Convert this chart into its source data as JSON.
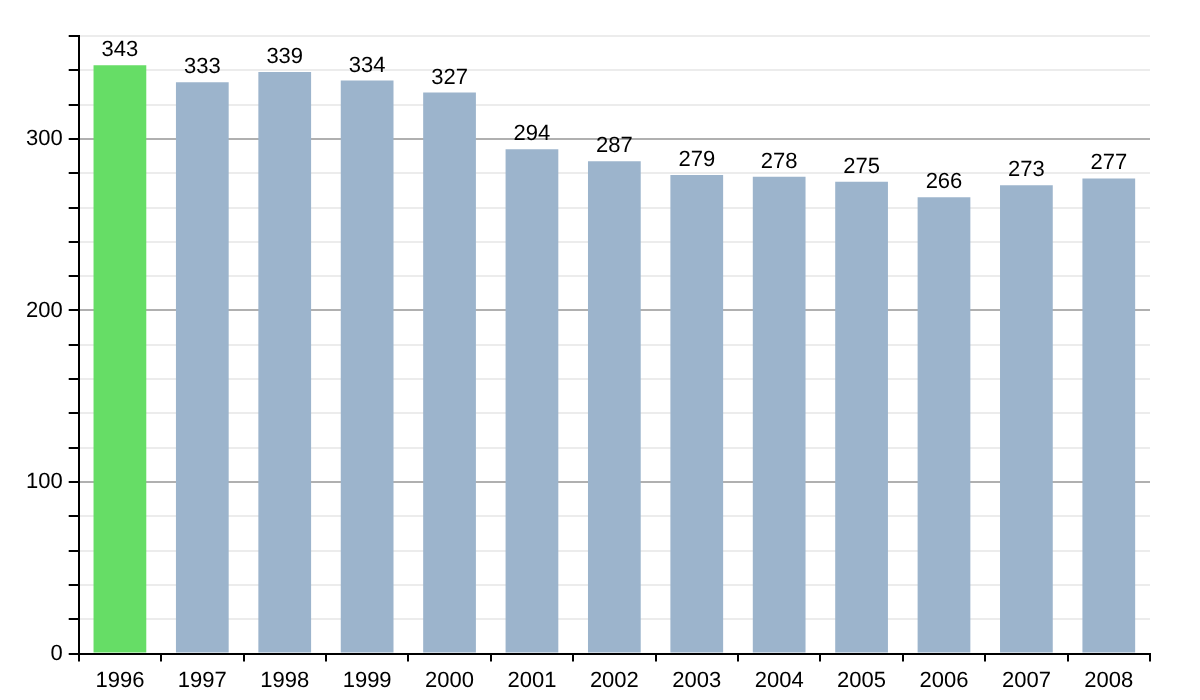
{
  "chart_data": {
    "type": "bar",
    "categories": [
      "1996",
      "1997",
      "1998",
      "1999",
      "2000",
      "2001",
      "2002",
      "2003",
      "2004",
      "2005",
      "2006",
      "2007",
      "2008"
    ],
    "values": [
      343,
      333,
      339,
      334,
      327,
      294,
      287,
      279,
      278,
      275,
      266,
      273,
      277
    ],
    "colors": [
      "#66dd66",
      "#9cb4cc",
      "#9cb4cc",
      "#9cb4cc",
      "#9cb4cc",
      "#9cb4cc",
      "#9cb4cc",
      "#9cb4cc",
      "#9cb4cc",
      "#9cb4cc",
      "#9cb4cc",
      "#9cb4cc",
      "#9cb4cc"
    ],
    "ylim": [
      0,
      360
    ],
    "yticks": [
      0,
      {
        "value": 20,
        "label": null
      },
      {
        "value": 40,
        "label": null
      },
      {
        "value": 60,
        "label": null
      },
      {
        "value": 80,
        "label": null
      },
      100,
      {
        "value": 120,
        "label": null
      },
      {
        "value": 140,
        "label": null
      },
      {
        "value": 160,
        "label": null
      },
      {
        "value": 180,
        "label": null
      },
      200,
      {
        "value": 220,
        "label": null
      },
      {
        "value": 240,
        "label": null
      },
      {
        "value": 260,
        "label": null
      },
      {
        "value": 280,
        "label": null
      },
      300,
      {
        "value": 320,
        "label": null
      },
      {
        "value": 340,
        "label": null
      },
      {
        "value": 360,
        "label": null
      }
    ],
    "grid": true,
    "data_labels": true
  }
}
